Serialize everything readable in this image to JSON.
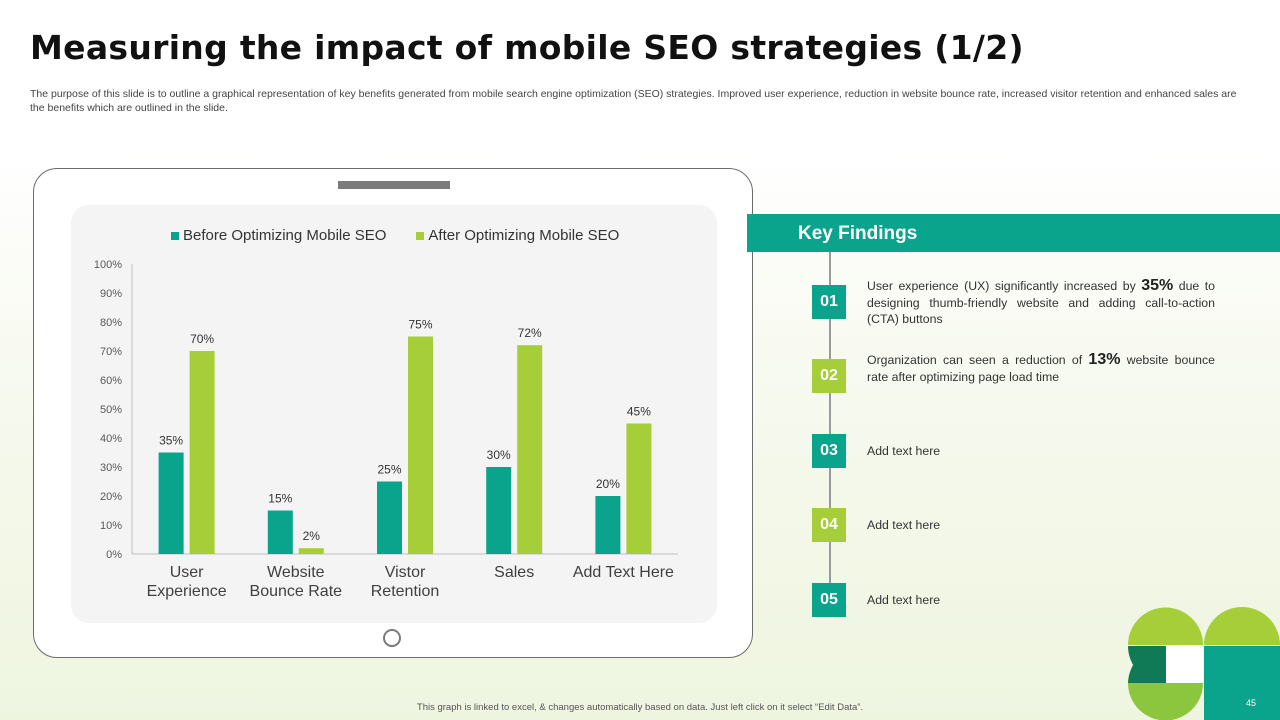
{
  "title": "Measuring the impact of mobile SEO strategies (1/2)",
  "subtitle": "The purpose of this slide is to outline a graphical representation of key benefits generated from mobile search engine optimization (SEO) strategies. Improved user experience, reduction in website bounce rate, increased visitor retention and enhanced sales are the benefits which are outlined in the slide.",
  "colors": {
    "teal": "#0aa48c",
    "green": "#a6ce39",
    "dark_green": "#0f7a55"
  },
  "chart_data": {
    "type": "bar",
    "categories": [
      [
        "User",
        "Experience"
      ],
      [
        "Website",
        "Bounce Rate"
      ],
      [
        "Vistor",
        "Retention"
      ],
      [
        "Sales"
      ],
      [
        "Add Text Here"
      ]
    ],
    "series": [
      {
        "name": "Before Optimizing Mobile SEO",
        "color": "#0aa48c",
        "values": [
          35,
          15,
          25,
          30,
          20
        ]
      },
      {
        "name": "After Optimizing Mobile SEO",
        "color": "#a6ce39",
        "values": [
          70,
          2,
          75,
          72,
          45
        ]
      }
    ],
    "yticks": [
      "0%",
      "10%",
      "20%",
      "30%",
      "40%",
      "50%",
      "60%",
      "70%",
      "80%",
      "90%",
      "100%"
    ],
    "ylim": [
      0,
      100
    ],
    "value_suffix": "%",
    "legend_position": "top",
    "grid": false
  },
  "key_findings": {
    "title": "Key Findings",
    "items": [
      {
        "num": "01",
        "color": "#0aa48c",
        "pre": "User experience (UX) significantly increased by ",
        "highlight": "35%",
        "post": " due to designing thumb-friendly website and adding call-to-action (CTA) buttons"
      },
      {
        "num": "02",
        "color": "#a6ce39",
        "pre": "Organization can seen a reduction of ",
        "highlight": "13%",
        "post": " website bounce rate after optimizing page load time"
      },
      {
        "num": "03",
        "color": "#0aa48c",
        "pre": "Add text here",
        "highlight": "",
        "post": ""
      },
      {
        "num": "04",
        "color": "#a6ce39",
        "pre": "Add text here",
        "highlight": "",
        "post": ""
      },
      {
        "num": "05",
        "color": "#0aa48c",
        "pre": "Add text here",
        "highlight": "",
        "post": ""
      }
    ]
  },
  "footer": "This graph is linked to excel, & changes automatically based on data. Just left click on it select “Edit Data”.",
  "page_number": "45"
}
